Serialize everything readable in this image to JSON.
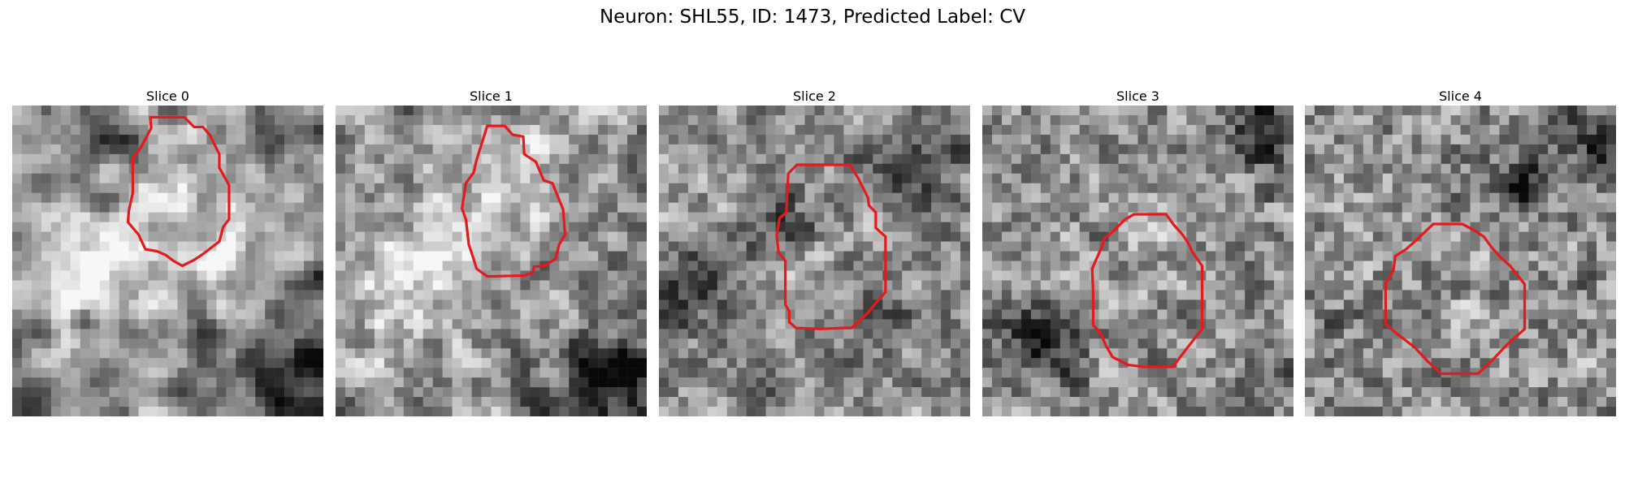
{
  "figure": {
    "title": "Neuron: SHL55, ID: 1473, Predicted Label: CV"
  },
  "panels": [
    {
      "title": "Slice 0"
    },
    {
      "title": "Slice 1"
    },
    {
      "title": "Slice 2"
    },
    {
      "title": "Slice 3"
    },
    {
      "title": "Slice 4"
    }
  ],
  "colors": {
    "contour": "#e41a1c",
    "image_colormap": "gray"
  }
}
